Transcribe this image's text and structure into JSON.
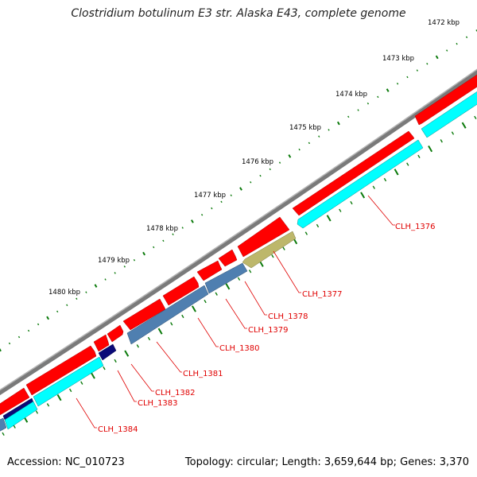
{
  "title": "Clostridium botulinum E3 str. Alaska E43, complete genome",
  "footer": {
    "accession": "Accession: NC_010723",
    "summary": "Topology: circular; Length: 3,659,644 bp; Genes: 3,370"
  },
  "colors": {
    "backbone": "#7a7a7a",
    "forward_cds": "#ff0000",
    "reverse_cds": "#00ffff",
    "steelblue_cds": "#4f7fb0",
    "navy_cds": "#0a0a78",
    "olive_cds": "#bdb76b",
    "tick": "#0b7a0b",
    "label_line": "#e00000"
  },
  "ticks": [
    {
      "label": "1472 kbp"
    },
    {
      "label": "1473 kbp"
    },
    {
      "label": "1474 kbp"
    },
    {
      "label": "1475 kbp"
    },
    {
      "label": "1476 kbp"
    },
    {
      "label": "1477 kbp"
    },
    {
      "label": "1478 kbp"
    },
    {
      "label": "1479 kbp"
    },
    {
      "label": "1480 kbp"
    }
  ],
  "genes": [
    {
      "label": "CLH_1376"
    },
    {
      "label": "CLH_1377"
    },
    {
      "label": "CLH_1378"
    },
    {
      "label": "CLH_1379"
    },
    {
      "label": "CLH_1380"
    },
    {
      "label": "CLH_1381"
    },
    {
      "label": "CLH_1382"
    },
    {
      "label": "CLH_1383"
    },
    {
      "label": "CLH_1384"
    }
  ]
}
